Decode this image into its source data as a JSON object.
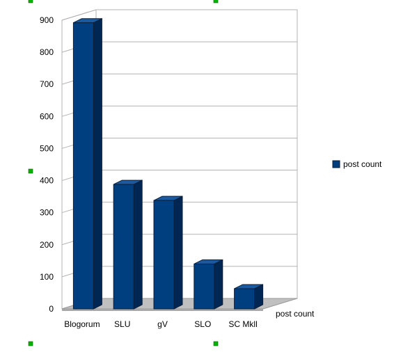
{
  "chart_data": {
    "type": "bar",
    "view": "3d",
    "categories": [
      "Blogorum",
      "SLU",
      "gV",
      "SLO",
      "SC Mkll"
    ],
    "series": [
      {
        "name": "post count",
        "values": [
          892,
          388,
          338,
          140,
          63
        ]
      }
    ],
    "ylim": [
      0,
      900
    ],
    "yticks": [
      0,
      100,
      200,
      300,
      400,
      500,
      600,
      700,
      800,
      900
    ],
    "depth_axis_label": "post count",
    "grid": true,
    "legend": "right"
  },
  "colors": {
    "bar_front": "#003f7f",
    "bar_side": "#002653",
    "bar_top": "#1a5aa0",
    "bar_edge": "#0d1f3a",
    "grid": "#b3b3b3",
    "wall": "#ffffff",
    "floor": "#c0c0c0"
  },
  "selection_handles": "green-square-icon"
}
